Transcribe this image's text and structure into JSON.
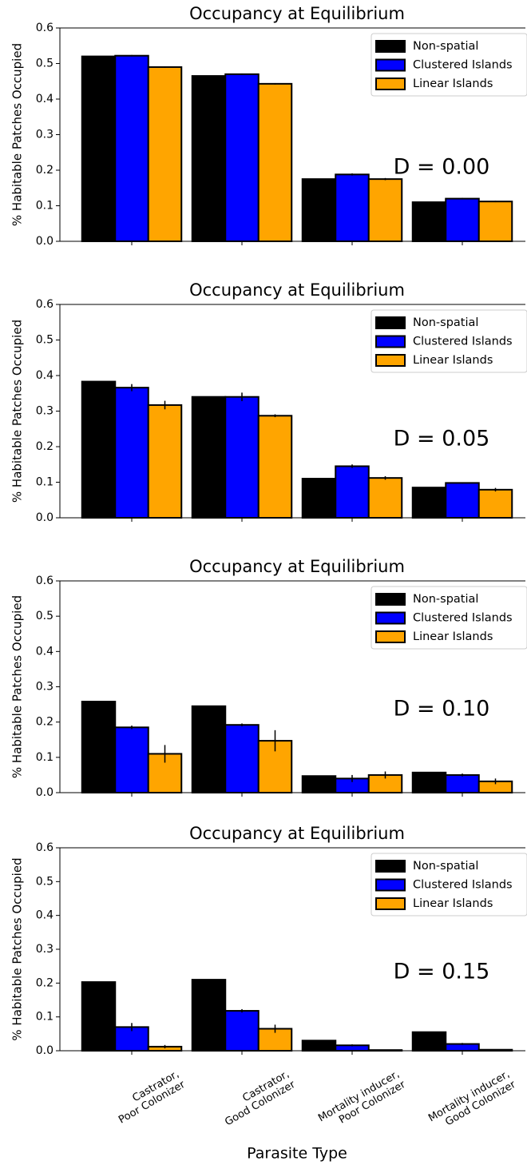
{
  "chart_data": [
    {
      "type": "bar",
      "title": "Occupancy at Equilibrium",
      "y_label": "% Habitable Patches Occupied",
      "annotation": "D = 0.00",
      "categories": [
        null,
        null,
        null,
        null
      ],
      "series": [
        {
          "name": "Non-spatial",
          "color": "#000000",
          "values": [
            0.52,
            0.465,
            0.175,
            0.11
          ],
          "errors": [
            0,
            0,
            0,
            0
          ]
        },
        {
          "name": "Clustered Islands",
          "color": "#0000ff",
          "values": [
            0.522,
            0.47,
            0.188,
            0.12
          ],
          "errors": [
            0.002,
            0.002,
            0.003,
            0.002
          ]
        },
        {
          "name": "Linear Islands",
          "color": "#ffa500",
          "values": [
            0.49,
            0.443,
            0.175,
            0.112
          ],
          "errors": [
            0.002,
            0.002,
            0.003,
            0.002
          ]
        }
      ],
      "ylim": [
        0,
        0.6
      ],
      "yticks": [
        {
          "value": 0,
          "label": "0.0"
        },
        0.1,
        0.2,
        0.3,
        0.4,
        0.5,
        0.6
      ],
      "legend": "upper right"
    },
    {
      "type": "bar",
      "title": "Occupancy at Equilibrium",
      "y_label": "% Habitable Patches Occupied",
      "annotation": "D = 0.05",
      "categories": [
        null,
        null,
        null,
        null
      ],
      "series": [
        {
          "name": "Non-spatial",
          "color": "#000000",
          "values": [
            0.383,
            0.34,
            0.11,
            0.085
          ],
          "errors": [
            0,
            0,
            0,
            0
          ]
        },
        {
          "name": "Clustered Islands",
          "color": "#0000ff",
          "values": [
            0.366,
            0.34,
            0.145,
            0.098
          ],
          "errors": [
            0.01,
            0.012,
            0.005,
            0.002
          ]
        },
        {
          "name": "Linear Islands",
          "color": "#ffa500",
          "values": [
            0.317,
            0.287,
            0.112,
            0.079
          ],
          "errors": [
            0.012,
            0.004,
            0.005,
            0.005
          ]
        }
      ],
      "ylim": [
        0,
        0.6
      ],
      "yticks": [
        {
          "value": 0,
          "label": "0.0"
        },
        0.1,
        0.2,
        0.3,
        0.4,
        0.5,
        0.6
      ],
      "legend": "upper right"
    },
    {
      "type": "bar",
      "title": "Occupancy at Equilibrium",
      "y_label": "% Habitable Patches Occupied",
      "annotation": "D = 0.10",
      "categories": [
        null,
        null,
        null,
        null
      ],
      "series": [
        {
          "name": "Non-spatial",
          "color": "#000000",
          "values": [
            0.258,
            0.245,
            0.047,
            0.057
          ],
          "errors": [
            0,
            0,
            0,
            0
          ]
        },
        {
          "name": "Clustered Islands",
          "color": "#0000ff",
          "values": [
            0.185,
            0.192,
            0.04,
            0.05
          ],
          "errors": [
            0.005,
            0.004,
            0.01,
            0.004
          ]
        },
        {
          "name": "Linear Islands",
          "color": "#ffa500",
          "values": [
            0.11,
            0.147,
            0.05,
            0.032
          ],
          "errors": [
            0.025,
            0.03,
            0.01,
            0.008
          ]
        }
      ],
      "ylim": [
        0,
        0.6
      ],
      "yticks": [
        {
          "value": 0,
          "label": "0.0"
        },
        0.1,
        0.2,
        0.3,
        0.4,
        0.5,
        0.6
      ],
      "legend": "upper right"
    },
    {
      "type": "bar",
      "title": "Occupancy at Equilibrium",
      "y_label": "% Habitable Patches Occupied",
      "annotation": "D = 0.15",
      "x_label": "Parasite Type",
      "categories": [
        "Castrator,\nPoor Colonizer",
        "Castrator,\nGood Colonizer",
        "Mortality inducer,\nPoor Colonizer",
        "Mortality inducer,\nGood Colonizer"
      ],
      "series": [
        {
          "name": "Non-spatial",
          "color": "#000000",
          "values": [
            0.203,
            0.21,
            0.03,
            0.055
          ],
          "errors": [
            0,
            0,
            0,
            0
          ]
        },
        {
          "name": "Clustered Islands",
          "color": "#0000ff",
          "values": [
            0.07,
            0.118,
            0.016,
            0.02
          ],
          "errors": [
            0.012,
            0.005,
            0.003,
            0.003
          ]
        },
        {
          "name": "Linear Islands",
          "color": "#ffa500",
          "values": [
            0.012,
            0.065,
            0.002,
            0.003
          ],
          "errors": [
            0.005,
            0.012,
            0.001,
            0.001
          ]
        }
      ],
      "ylim": [
        0,
        0.6
      ],
      "yticks": [
        {
          "value": 0,
          "label": "0.0"
        },
        0.1,
        0.2,
        0.3,
        0.4,
        0.5,
        0.6
      ],
      "legend": "upper right"
    }
  ]
}
